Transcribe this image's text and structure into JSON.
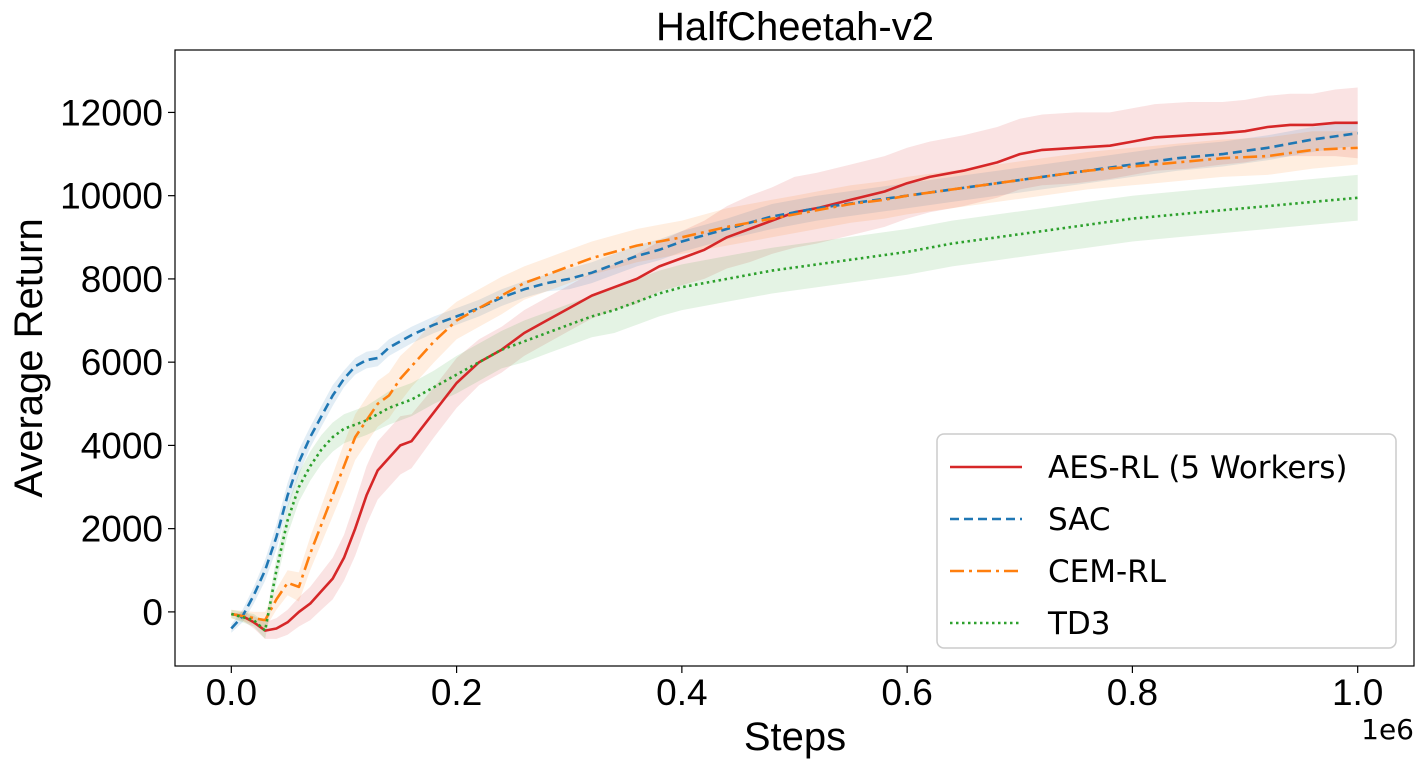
{
  "chart_data": {
    "type": "line",
    "title": "HalfCheetah-v2",
    "xlabel": "Steps",
    "ylabel": "Average Return",
    "x_multiplier": "1e6",
    "xlim": [
      -0.05,
      1.05
    ],
    "ylim": [
      -1300,
      13500
    ],
    "xticks": [
      0.0,
      0.2,
      0.4,
      0.6,
      0.8,
      1.0
    ],
    "xtick_labels": [
      "0.0",
      "0.2",
      "0.4",
      "0.6",
      "0.8",
      "1.0"
    ],
    "yticks": [
      0,
      2000,
      4000,
      6000,
      8000,
      10000,
      12000
    ],
    "ytick_labels": [
      "0",
      "2000",
      "4000",
      "6000",
      "8000",
      "10000",
      "12000"
    ],
    "grid": false,
    "legend_position": "lower-right",
    "series": [
      {
        "name": "AES-RL (5 Workers)",
        "color": "#d62728",
        "style": "solid",
        "x": [
          0.0,
          0.01,
          0.02,
          0.03,
          0.04,
          0.05,
          0.06,
          0.07,
          0.08,
          0.09,
          0.1,
          0.11,
          0.12,
          0.13,
          0.14,
          0.15,
          0.16,
          0.18,
          0.2,
          0.22,
          0.24,
          0.26,
          0.28,
          0.3,
          0.32,
          0.34,
          0.36,
          0.38,
          0.4,
          0.42,
          0.44,
          0.46,
          0.48,
          0.5,
          0.52,
          0.55,
          0.58,
          0.6,
          0.62,
          0.65,
          0.68,
          0.7,
          0.72,
          0.75,
          0.78,
          0.8,
          0.82,
          0.85,
          0.88,
          0.9,
          0.92,
          0.94,
          0.96,
          0.98,
          1.0
        ],
        "y": [
          -50,
          -100,
          -250,
          -450,
          -400,
          -250,
          0,
          200,
          500,
          800,
          1300,
          2000,
          2800,
          3400,
          3700,
          4000,
          4100,
          4800,
          5500,
          6000,
          6300,
          6700,
          7000,
          7300,
          7600,
          7800,
          8000,
          8300,
          8500,
          8700,
          9000,
          9200,
          9400,
          9600,
          9700,
          9900,
          10100,
          10300,
          10450,
          10600,
          10800,
          11000,
          11100,
          11150,
          11200,
          11300,
          11400,
          11450,
          11500,
          11550,
          11650,
          11700,
          11700,
          11750,
          11750
        ],
        "band": [
          0,
          100,
          150,
          200,
          250,
          300,
          350,
          400,
          450,
          500,
          550,
          650,
          700,
          700,
          700,
          700,
          650,
          600,
          600,
          550,
          550,
          550,
          550,
          550,
          550,
          550,
          600,
          600,
          650,
          700,
          750,
          800,
          800,
          850,
          850,
          850,
          850,
          850,
          850,
          850,
          850,
          850,
          850,
          850,
          800,
          800,
          800,
          800,
          750,
          750,
          750,
          750,
          750,
          800,
          850
        ]
      },
      {
        "name": "SAC",
        "color": "#1f77b4",
        "style": "dashed",
        "x": [
          0.0,
          0.01,
          0.02,
          0.03,
          0.04,
          0.05,
          0.06,
          0.07,
          0.08,
          0.09,
          0.1,
          0.11,
          0.12,
          0.13,
          0.14,
          0.16,
          0.18,
          0.2,
          0.22,
          0.24,
          0.26,
          0.28,
          0.3,
          0.32,
          0.34,
          0.36,
          0.38,
          0.4,
          0.44,
          0.48,
          0.52,
          0.56,
          0.6,
          0.64,
          0.68,
          0.72,
          0.76,
          0.8,
          0.84,
          0.88,
          0.92,
          0.96,
          1.0
        ],
        "y": [
          -400,
          -100,
          400,
          1000,
          1800,
          2800,
          3600,
          4200,
          4700,
          5200,
          5600,
          5900,
          6050,
          6100,
          6350,
          6650,
          6900,
          7100,
          7300,
          7550,
          7750,
          7900,
          8000,
          8150,
          8350,
          8550,
          8700,
          8900,
          9200,
          9500,
          9700,
          9850,
          10000,
          10150,
          10300,
          10450,
          10600,
          10750,
          10900,
          11000,
          11150,
          11350,
          11500
        ],
        "band": [
          100,
          150,
          200,
          250,
          300,
          300,
          300,
          250,
          250,
          250,
          200,
          200,
          200,
          200,
          200,
          200,
          200,
          200,
          200,
          200,
          200,
          200,
          250,
          250,
          250,
          250,
          250,
          250,
          250,
          300,
          300,
          300,
          300,
          300,
          300,
          300,
          300,
          300,
          300,
          300,
          300,
          300,
          300
        ]
      },
      {
        "name": "CEM-RL",
        "color": "#ff7f0e",
        "style": "dashdot",
        "x": [
          0.0,
          0.02,
          0.03,
          0.04,
          0.05,
          0.06,
          0.07,
          0.08,
          0.09,
          0.1,
          0.11,
          0.12,
          0.13,
          0.14,
          0.15,
          0.16,
          0.18,
          0.2,
          0.22,
          0.24,
          0.26,
          0.28,
          0.3,
          0.32,
          0.34,
          0.36,
          0.38,
          0.4,
          0.44,
          0.48,
          0.5,
          0.52,
          0.55,
          0.58,
          0.6,
          0.64,
          0.68,
          0.72,
          0.76,
          0.8,
          0.84,
          0.88,
          0.92,
          0.96,
          1.0
        ],
        "y": [
          -50,
          -150,
          -200,
          300,
          700,
          600,
          1400,
          2100,
          2800,
          3500,
          4200,
          4600,
          5000,
          5200,
          5600,
          5900,
          6500,
          7000,
          7300,
          7600,
          7900,
          8100,
          8300,
          8500,
          8650,
          8800,
          8900,
          9000,
          9250,
          9450,
          9550,
          9650,
          9800,
          9900,
          10000,
          10150,
          10300,
          10450,
          10600,
          10700,
          10800,
          10900,
          10950,
          11100,
          11150
        ],
        "band": [
          100,
          150,
          200,
          250,
          300,
          350,
          400,
          450,
          500,
          550,
          550,
          550,
          550,
          550,
          550,
          500,
          500,
          450,
          450,
          450,
          400,
          400,
          400,
          400,
          400,
          400,
          400,
          400,
          450,
          450,
          450,
          450,
          450,
          450,
          450,
          450,
          450,
          450,
          450,
          450,
          450,
          450,
          450,
          450,
          400
        ]
      },
      {
        "name": "TD3",
        "color": "#2ca02c",
        "style": "dotted",
        "x": [
          0.0,
          0.02,
          0.03,
          0.04,
          0.05,
          0.06,
          0.07,
          0.08,
          0.09,
          0.1,
          0.12,
          0.14,
          0.16,
          0.18,
          0.2,
          0.22,
          0.24,
          0.26,
          0.28,
          0.3,
          0.32,
          0.34,
          0.36,
          0.38,
          0.4,
          0.44,
          0.48,
          0.52,
          0.56,
          0.6,
          0.64,
          0.68,
          0.72,
          0.76,
          0.8,
          0.84,
          0.88,
          0.92,
          0.96,
          1.0
        ],
        "y": [
          -50,
          -200,
          -450,
          1000,
          2200,
          3000,
          3500,
          3900,
          4200,
          4400,
          4600,
          4900,
          5100,
          5400,
          5700,
          6000,
          6300,
          6500,
          6700,
          6900,
          7100,
          7250,
          7450,
          7650,
          7800,
          8000,
          8200,
          8350,
          8500,
          8650,
          8850,
          9000,
          9150,
          9300,
          9450,
          9550,
          9650,
          9750,
          9850,
          9950
        ],
        "band": [
          100,
          150,
          200,
          300,
          350,
          350,
          350,
          350,
          350,
          350,
          350,
          400,
          400,
          400,
          450,
          450,
          450,
          500,
          500,
          500,
          500,
          550,
          550,
          550,
          550,
          550,
          550,
          550,
          550,
          550,
          550,
          550,
          550,
          550,
          550,
          550,
          550,
          550,
          550,
          550
        ]
      }
    ]
  }
}
